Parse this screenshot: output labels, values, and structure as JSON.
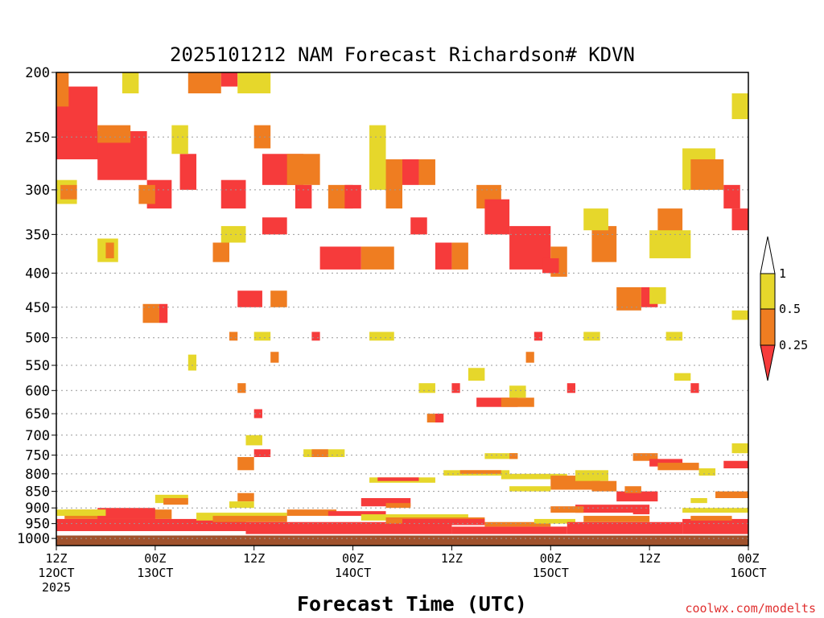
{
  "chart_data": {
    "type": "heatmap",
    "title": "2025101212 NAM Forecast Richardson# KDVN",
    "xlabel": "Forecast Time (UTC)",
    "ylabel": "",
    "credit": "coolwx.com/modelts",
    "x_range_hours": [
      0,
      84
    ],
    "y_range_hpa": [
      200,
      1025
    ],
    "y_ticks": [
      "200",
      "250",
      "300",
      "350",
      "400",
      "450",
      "500",
      "550",
      "600",
      "650",
      "700",
      "750",
      "800",
      "850",
      "900",
      "950",
      "1000"
    ],
    "x_ticks": [
      {
        "hour": 0,
        "line1": "12Z",
        "line2": "12OCT",
        "line3": "2025"
      },
      {
        "hour": 12,
        "line1": "00Z",
        "line2": "13OCT",
        "line3": ""
      },
      {
        "hour": 24,
        "line1": "12Z",
        "line2": "",
        "line3": ""
      },
      {
        "hour": 36,
        "line1": "00Z",
        "line2": "14OCT",
        "line3": ""
      },
      {
        "hour": 48,
        "line1": "12Z",
        "line2": "",
        "line3": ""
      },
      {
        "hour": 60,
        "line1": "00Z",
        "line2": "15OCT",
        "line3": ""
      },
      {
        "hour": 72,
        "line1": "12Z",
        "line2": "",
        "line3": ""
      },
      {
        "hour": 84,
        "line1": "00Z",
        "line2": "16OCT",
        "line3": ""
      }
    ],
    "colorbar": {
      "levels": [
        "1",
        "0.5",
        "0.25"
      ],
      "bins": [
        {
          "range": "> 1",
          "color": "#ffffff"
        },
        {
          "range": "0.5-1",
          "color": "#e6d72b"
        },
        {
          "range": "0.25-0.5",
          "color": "#ef7d21"
        },
        {
          "range": "< 0.25",
          "color": "#f63b3b"
        }
      ]
    },
    "colors": {
      "yellow": "#e6d72b",
      "orange": "#ef7d21",
      "red": "#f63b3b",
      "ground": "#a0522d"
    },
    "ground_pressure_hpa": 990,
    "patches": [
      {
        "c": "r",
        "t0": 0,
        "t1": 5,
        "p0": 210,
        "p1": 250
      },
      {
        "c": "r",
        "t0": 0,
        "t1": 6,
        "p0": 245,
        "p1": 270
      },
      {
        "c": "o",
        "t0": 0,
        "t1": 1.5,
        "p0": 200,
        "p1": 225
      },
      {
        "c": "r",
        "t0": 5,
        "t1": 11,
        "p0": 245,
        "p1": 290
      },
      {
        "c": "o",
        "t0": 5,
        "t1": 9,
        "p0": 240,
        "p1": 255
      },
      {
        "c": "y",
        "t0": 0,
        "t1": 2.5,
        "p0": 290,
        "p1": 315
      },
      {
        "c": "o",
        "t0": 0.5,
        "t1": 2.5,
        "p0": 295,
        "p1": 310
      },
      {
        "c": "y",
        "t0": 8,
        "t1": 10,
        "p0": 200,
        "p1": 215
      },
      {
        "c": "r",
        "t0": 11,
        "t1": 14,
        "p0": 290,
        "p1": 320
      },
      {
        "c": "o",
        "t0": 10,
        "t1": 12,
        "p0": 295,
        "p1": 315
      },
      {
        "c": "r",
        "t0": 15,
        "t1": 17,
        "p0": 265,
        "p1": 300
      },
      {
        "c": "y",
        "t0": 14,
        "t1": 16,
        "p0": 240,
        "p1": 265
      },
      {
        "c": "y",
        "t0": 5,
        "t1": 7.5,
        "p0": 355,
        "p1": 385
      },
      {
        "c": "o",
        "t0": 6,
        "t1": 7,
        "p0": 360,
        "p1": 380
      },
      {
        "c": "o",
        "t0": 16,
        "t1": 20,
        "p0": 200,
        "p1": 215
      },
      {
        "c": "r",
        "t0": 20,
        "t1": 22,
        "p0": 200,
        "p1": 210
      },
      {
        "c": "y",
        "t0": 22,
        "t1": 26,
        "p0": 200,
        "p1": 215
      },
      {
        "c": "r",
        "t0": 20,
        "t1": 23,
        "p0": 290,
        "p1": 320
      },
      {
        "c": "r",
        "t0": 25,
        "t1": 30,
        "p0": 265,
        "p1": 295
      },
      {
        "c": "o",
        "t0": 24,
        "t1": 26,
        "p0": 240,
        "p1": 260
      },
      {
        "c": "r",
        "t0": 25,
        "t1": 28,
        "p0": 330,
        "p1": 350
      },
      {
        "c": "o",
        "t0": 28,
        "t1": 32,
        "p0": 265,
        "p1": 295
      },
      {
        "c": "r",
        "t0": 29,
        "t1": 31,
        "p0": 295,
        "p1": 320
      },
      {
        "c": "o",
        "t0": 19,
        "t1": 21,
        "p0": 360,
        "p1": 385
      },
      {
        "c": "y",
        "t0": 20,
        "t1": 23,
        "p0": 340,
        "p1": 360
      },
      {
        "c": "r",
        "t0": 22,
        "t1": 25,
        "p0": 425,
        "p1": 450
      },
      {
        "c": "o",
        "t0": 26,
        "t1": 28,
        "p0": 425,
        "p1": 450
      },
      {
        "c": "r",
        "t0": 32,
        "t1": 37,
        "p0": 365,
        "p1": 395
      },
      {
        "c": "o",
        "t0": 33,
        "t1": 36,
        "p0": 295,
        "p1": 320
      },
      {
        "c": "r",
        "t0": 35,
        "t1": 37,
        "p0": 295,
        "p1": 320
      },
      {
        "c": "o",
        "t0": 37,
        "t1": 41,
        "p0": 365,
        "p1": 395
      },
      {
        "c": "y",
        "t0": 38,
        "t1": 40,
        "p0": 240,
        "p1": 300
      },
      {
        "c": "o",
        "t0": 40,
        "t1": 42,
        "p0": 270,
        "p1": 320
      },
      {
        "c": "r",
        "t0": 42,
        "t1": 44,
        "p0": 270,
        "p1": 295
      },
      {
        "c": "o",
        "t0": 44,
        "t1": 46,
        "p0": 270,
        "p1": 295
      },
      {
        "c": "r",
        "t0": 43,
        "t1": 45,
        "p0": 330,
        "p1": 350
      },
      {
        "c": "r",
        "t0": 46,
        "t1": 48,
        "p0": 360,
        "p1": 395
      },
      {
        "c": "o",
        "t0": 48,
        "t1": 50,
        "p0": 360,
        "p1": 395
      },
      {
        "c": "r",
        "t0": 55,
        "t1": 60,
        "p0": 340,
        "p1": 395
      },
      {
        "c": "o",
        "t0": 51,
        "t1": 54,
        "p0": 295,
        "p1": 320
      },
      {
        "c": "r",
        "t0": 52,
        "t1": 55,
        "p0": 310,
        "p1": 350
      },
      {
        "c": "o",
        "t0": 60,
        "t1": 62,
        "p0": 365,
        "p1": 405
      },
      {
        "c": "r",
        "t0": 59,
        "t1": 61,
        "p0": 380,
        "p1": 400
      },
      {
        "c": "o",
        "t0": 65,
        "t1": 68,
        "p0": 340,
        "p1": 385
      },
      {
        "c": "y",
        "t0": 64,
        "t1": 67,
        "p0": 320,
        "p1": 345
      },
      {
        "c": "o",
        "t0": 68,
        "t1": 71,
        "p0": 420,
        "p1": 455
      },
      {
        "c": "r",
        "t0": 71,
        "t1": 73,
        "p0": 420,
        "p1": 450
      },
      {
        "c": "y",
        "t0": 72,
        "t1": 74,
        "p0": 420,
        "p1": 445
      },
      {
        "c": "y",
        "t0": 76,
        "t1": 80,
        "p0": 260,
        "p1": 300
      },
      {
        "c": "o",
        "t0": 77,
        "t1": 81,
        "p0": 270,
        "p1": 300
      },
      {
        "c": "r",
        "t0": 81,
        "t1": 83,
        "p0": 295,
        "p1": 320
      },
      {
        "c": "r",
        "t0": 82,
        "t1": 84,
        "p0": 320,
        "p1": 345
      },
      {
        "c": "o",
        "t0": 73,
        "t1": 76,
        "p0": 320,
        "p1": 350
      },
      {
        "c": "y",
        "t0": 72,
        "t1": 77,
        "p0": 345,
        "p1": 380
      },
      {
        "c": "y",
        "t0": 82,
        "t1": 84,
        "p0": 455,
        "p1": 470
      },
      {
        "c": "y",
        "t0": 82,
        "t1": 84,
        "p0": 215,
        "p1": 235
      },
      {
        "c": "o",
        "t0": 10.5,
        "t1": 12.5,
        "p0": 445,
        "p1": 475
      },
      {
        "c": "r",
        "t0": 12.5,
        "t1": 13.5,
        "p0": 445,
        "p1": 475
      },
      {
        "c": "y",
        "t0": 16,
        "t1": 17,
        "p0": 530,
        "p1": 560
      },
      {
        "c": "o",
        "t0": 21,
        "t1": 22,
        "p0": 490,
        "p1": 505
      },
      {
        "c": "y",
        "t0": 24,
        "t1": 26,
        "p0": 490,
        "p1": 505
      },
      {
        "c": "o",
        "t0": 26,
        "t1": 27,
        "p0": 525,
        "p1": 545
      },
      {
        "c": "r",
        "t0": 31,
        "t1": 32,
        "p0": 490,
        "p1": 505
      },
      {
        "c": "y",
        "t0": 38,
        "t1": 41,
        "p0": 490,
        "p1": 505
      },
      {
        "c": "r",
        "t0": 58,
        "t1": 59,
        "p0": 490,
        "p1": 505
      },
      {
        "c": "o",
        "t0": 57,
        "t1": 58,
        "p0": 525,
        "p1": 545
      },
      {
        "c": "y",
        "t0": 64,
        "t1": 66,
        "p0": 490,
        "p1": 505
      },
      {
        "c": "y",
        "t0": 74,
        "t1": 76,
        "p0": 490,
        "p1": 505
      },
      {
        "c": "o",
        "t0": 22,
        "t1": 23,
        "p0": 585,
        "p1": 605
      },
      {
        "c": "r",
        "t0": 48,
        "t1": 49,
        "p0": 585,
        "p1": 605
      },
      {
        "c": "y",
        "t0": 44,
        "t1": 46,
        "p0": 585,
        "p1": 605
      },
      {
        "c": "y",
        "t0": 50,
        "t1": 52,
        "p0": 555,
        "p1": 580
      },
      {
        "c": "r",
        "t0": 51,
        "t1": 56,
        "p0": 615,
        "p1": 635
      },
      {
        "c": "o",
        "t0": 54,
        "t1": 58,
        "p0": 615,
        "p1": 635
      },
      {
        "c": "y",
        "t0": 55,
        "t1": 57,
        "p0": 590,
        "p1": 615
      },
      {
        "c": "r",
        "t0": 62,
        "t1": 63,
        "p0": 585,
        "p1": 605
      },
      {
        "c": "y",
        "t0": 75,
        "t1": 77,
        "p0": 565,
        "p1": 580
      },
      {
        "c": "r",
        "t0": 77,
        "t1": 78,
        "p0": 585,
        "p1": 605
      },
      {
        "c": "r",
        "t0": 24,
        "t1": 25,
        "p0": 640,
        "p1": 660
      },
      {
        "c": "o",
        "t0": 45,
        "t1": 47,
        "p0": 650,
        "p1": 670
      },
      {
        "c": "r",
        "t0": 46,
        "t1": 47,
        "p0": 650,
        "p1": 670
      },
      {
        "c": "y",
        "t0": 23,
        "t1": 25,
        "p0": 700,
        "p1": 725
      },
      {
        "c": "r",
        "t0": 24,
        "t1": 26,
        "p0": 735,
        "p1": 755
      },
      {
        "c": "o",
        "t0": 22,
        "t1": 24,
        "p0": 755,
        "p1": 790
      },
      {
        "c": "y",
        "t0": 30,
        "t1": 35,
        "p0": 735,
        "p1": 755
      },
      {
        "c": "o",
        "t0": 31,
        "t1": 33,
        "p0": 735,
        "p1": 755
      },
      {
        "c": "y",
        "t0": 52,
        "t1": 56,
        "p0": 745,
        "p1": 760
      },
      {
        "c": "o",
        "t0": 55,
        "t1": 56,
        "p0": 745,
        "p1": 760
      },
      {
        "c": "y",
        "t0": 82,
        "t1": 84,
        "p0": 720,
        "p1": 745
      },
      {
        "c": "o",
        "t0": 70,
        "t1": 73,
        "p0": 745,
        "p1": 765
      },
      {
        "c": "r",
        "t0": 72,
        "t1": 76,
        "p0": 760,
        "p1": 780
      },
      {
        "c": "o",
        "t0": 73,
        "t1": 78,
        "p0": 770,
        "p1": 790
      },
      {
        "c": "r",
        "t0": 81,
        "t1": 84,
        "p0": 765,
        "p1": 785
      },
      {
        "c": "y",
        "t0": 78,
        "t1": 80,
        "p0": 785,
        "p1": 805
      },
      {
        "c": "y",
        "t0": 38,
        "t1": 46,
        "p0": 810,
        "p1": 825
      },
      {
        "c": "r",
        "t0": 39,
        "t1": 44,
        "p0": 810,
        "p1": 820
      },
      {
        "c": "y",
        "t0": 47,
        "t1": 55,
        "p0": 790,
        "p1": 805
      },
      {
        "c": "o",
        "t0": 49,
        "t1": 54,
        "p0": 790,
        "p1": 800
      },
      {
        "c": "y",
        "t0": 54,
        "t1": 62,
        "p0": 800,
        "p1": 815
      },
      {
        "c": "o",
        "t0": 60,
        "t1": 66,
        "p0": 805,
        "p1": 845
      },
      {
        "c": "y",
        "t0": 63,
        "t1": 67,
        "p0": 790,
        "p1": 820
      },
      {
        "c": "o",
        "t0": 65,
        "t1": 68,
        "p0": 820,
        "p1": 850
      },
      {
        "c": "r",
        "t0": 68,
        "t1": 73,
        "p0": 850,
        "p1": 880
      },
      {
        "c": "o",
        "t0": 69,
        "t1": 71,
        "p0": 835,
        "p1": 855
      },
      {
        "c": "o",
        "t0": 80,
        "t1": 84,
        "p0": 850,
        "p1": 870
      },
      {
        "c": "y",
        "t0": 77,
        "t1": 79,
        "p0": 870,
        "p1": 885
      },
      {
        "c": "y",
        "t0": 12,
        "t1": 16,
        "p0": 860,
        "p1": 885
      },
      {
        "c": "o",
        "t0": 13,
        "t1": 16,
        "p0": 870,
        "p1": 890
      },
      {
        "c": "o",
        "t0": 22,
        "t1": 24,
        "p0": 855,
        "p1": 880
      },
      {
        "c": "y",
        "t0": 21,
        "t1": 24,
        "p0": 880,
        "p1": 900
      },
      {
        "c": "r",
        "t0": 37,
        "t1": 43,
        "p0": 870,
        "p1": 895
      },
      {
        "c": "o",
        "t0": 40,
        "t1": 43,
        "p0": 885,
        "p1": 900
      },
      {
        "c": "y",
        "t0": 55,
        "t1": 60,
        "p0": 835,
        "p1": 850
      },
      {
        "c": "r",
        "t0": 63,
        "t1": 72,
        "p0": 890,
        "p1": 915
      },
      {
        "c": "o",
        "t0": 60,
        "t1": 64,
        "p0": 895,
        "p1": 915
      },
      {
        "c": "r",
        "t0": 70,
        "t1": 72,
        "p0": 905,
        "p1": 920
      },
      {
        "c": "y",
        "t0": 76,
        "t1": 84,
        "p0": 900,
        "p1": 915
      },
      {
        "c": "r",
        "t0": 0,
        "t1": 23,
        "p0": 935,
        "p1": 975
      },
      {
        "c": "o",
        "t0": 1,
        "t1": 14,
        "p0": 905,
        "p1": 935
      },
      {
        "c": "r",
        "t0": 5,
        "t1": 12,
        "p0": 900,
        "p1": 935
      },
      {
        "c": "y",
        "t0": 0,
        "t1": 6,
        "p0": 905,
        "p1": 925
      },
      {
        "c": "y",
        "t0": 17,
        "t1": 28,
        "p0": 915,
        "p1": 940
      },
      {
        "c": "o",
        "t0": 19,
        "t1": 28,
        "p0": 925,
        "p1": 945
      },
      {
        "c": "r",
        "t0": 23,
        "t1": 48,
        "p0": 945,
        "p1": 985
      },
      {
        "c": "o",
        "t0": 28,
        "t1": 34,
        "p0": 905,
        "p1": 925
      },
      {
        "c": "r",
        "t0": 33,
        "t1": 40,
        "p0": 910,
        "p1": 925
      },
      {
        "c": "y",
        "t0": 37,
        "t1": 50,
        "p0": 920,
        "p1": 940
      },
      {
        "c": "o",
        "t0": 40,
        "t1": 52,
        "p0": 930,
        "p1": 950
      },
      {
        "c": "r",
        "t0": 42,
        "t1": 52,
        "p0": 935,
        "p1": 955
      },
      {
        "c": "r",
        "t0": 48,
        "t1": 62,
        "p0": 960,
        "p1": 985
      },
      {
        "c": "o",
        "t0": 52,
        "t1": 60,
        "p0": 945,
        "p1": 960
      },
      {
        "c": "y",
        "t0": 58,
        "t1": 63,
        "p0": 935,
        "p1": 950
      },
      {
        "c": "r",
        "t0": 62,
        "t1": 76,
        "p0": 945,
        "p1": 985
      },
      {
        "c": "o",
        "t0": 64,
        "t1": 72,
        "p0": 925,
        "p1": 945
      },
      {
        "c": "r",
        "t0": 76,
        "t1": 84,
        "p0": 935,
        "p1": 985
      },
      {
        "c": "o",
        "t0": 77,
        "t1": 82,
        "p0": 925,
        "p1": 940
      }
    ]
  }
}
